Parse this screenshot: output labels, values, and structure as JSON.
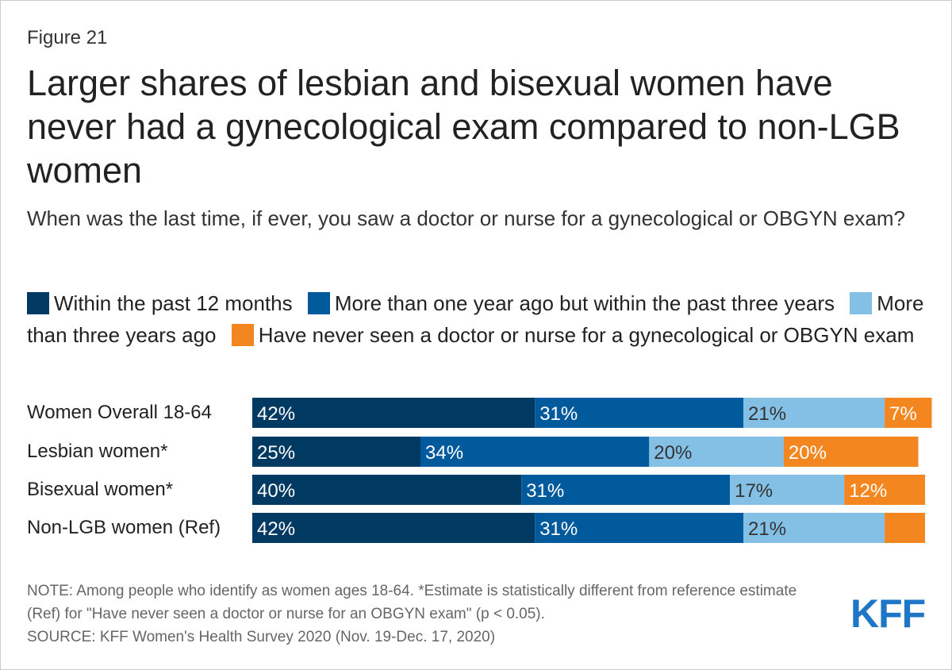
{
  "figure_label": "Figure 21",
  "colors": {
    "within_12_months": "#003a63",
    "one_to_three_years": "#005a9b",
    "more_than_three_years": "#84bfe6",
    "never": "#f4861f",
    "brand": "#1f76c7"
  },
  "chart_data": {
    "type": "bar",
    "orientation": "horizontal",
    "stacked": true,
    "title": "Larger shares of lesbian and bisexual women have never had a gynecological exam compared to non-LGB women",
    "subtitle": "When was the last time, if ever, you saw a doctor or nurse for a gynecological or OBGYN exam?",
    "categories": [
      "Women Overall 18-64",
      "Lesbian women*",
      "Bisexual women*",
      "Non-LGB women (Ref)"
    ],
    "series": [
      {
        "name": "Within the past 12 months",
        "values": [
          42,
          25,
          40,
          42
        ],
        "labels": [
          "42%",
          "25%",
          "40%",
          "42%"
        ]
      },
      {
        "name": "More than one year ago but within the past three years",
        "values": [
          31,
          34,
          31,
          31
        ],
        "labels": [
          "31%",
          "34%",
          "31%",
          "31%"
        ]
      },
      {
        "name": "More than three years ago",
        "values": [
          21,
          20,
          17,
          21
        ],
        "labels": [
          "21%",
          "20%",
          "17%",
          "21%"
        ]
      },
      {
        "name": "Have never seen a doctor or nurse for a gynecological or OBGYN exam",
        "values": [
          7,
          20,
          12,
          6
        ],
        "labels": [
          "7%",
          "20%",
          "12%",
          ""
        ]
      }
    ],
    "xlim": [
      0,
      100
    ],
    "xlabel": "",
    "ylabel": "",
    "legend_position": "top"
  },
  "notes": {
    "note": "NOTE: Among people who identify as women ages 18-64. *Estimate is statistically different from reference estimate (Ref) for \"Have never seen a doctor or nurse for an OBGYN exam\" (p < 0.05).",
    "source": "SOURCE: KFF Women's Health Survey 2020 (Nov. 19-Dec. 17, 2020)"
  },
  "logo_text": "KFF"
}
